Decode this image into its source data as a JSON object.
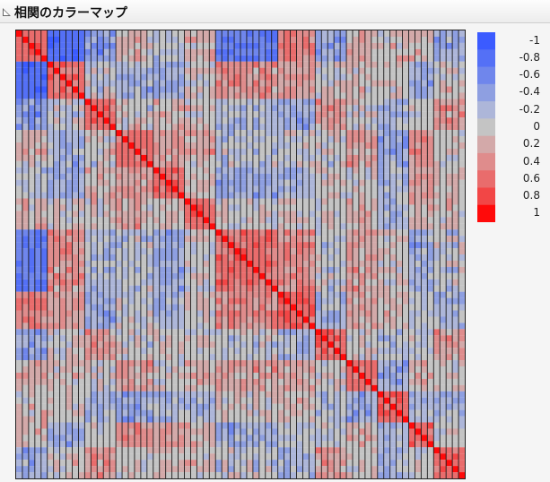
{
  "header": {
    "title": "相関のカラーマップ",
    "disclosure_icon": "triangle-down-left-icon"
  },
  "chart_data": {
    "type": "heatmap",
    "title": "相関のカラーマップ",
    "variables_count": 72,
    "value_range": [
      -1,
      1
    ],
    "diagonal_value": 1,
    "legend": {
      "placement": "right",
      "ticks": [
        "-1",
        "-0.8",
        "-0.6",
        "-0.4",
        "-0.2",
        "0",
        "0.2",
        "0.4",
        "0.6",
        "0.8",
        "1"
      ],
      "colors": [
        "#3b5bff",
        "#5470f6",
        "#6f86ec",
        "#8e9fe1",
        "#adb6d9",
        "#c4c4c4",
        "#d3a9a9",
        "#df8c8c",
        "#e96c6c",
        "#f24646",
        "#ff0a0a"
      ]
    },
    "grid": true
  }
}
